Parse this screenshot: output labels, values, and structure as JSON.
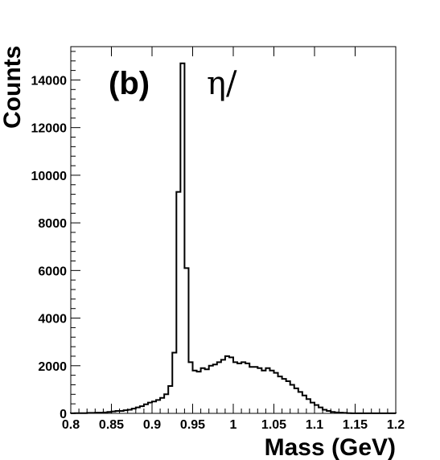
{
  "chart_data": {
    "type": "histogram",
    "xlabel": "Mass (GeV)",
    "ylabel": "Counts",
    "xlim": [
      0.8,
      1.2
    ],
    "ylim": [
      0,
      15400
    ],
    "x_ticks": [
      "0.8",
      "0.85",
      "0.9",
      "0.95",
      "1",
      "1.05",
      "1.1",
      "1.15",
      "1.2"
    ],
    "y_ticks": [
      "0",
      "2000",
      "4000",
      "6000",
      "8000",
      "10000",
      "12000",
      "14000"
    ],
    "panel_label": "(b)",
    "annotation": "η/",
    "bin_width": 0.005,
    "grid": false,
    "series": [
      {
        "x_start": 0.8,
        "values": [
          5,
          10,
          10,
          10,
          20,
          20,
          30,
          30,
          40,
          60,
          80,
          100,
          100,
          130,
          150,
          200,
          250,
          300,
          380,
          450,
          500,
          560,
          650,
          800,
          1150,
          2550,
          9300,
          14700,
          6100,
          2150,
          1800,
          1750,
          1900,
          1850,
          2000,
          2050,
          2150,
          2250,
          2400,
          2350,
          2150,
          2100,
          2150,
          2100,
          1950,
          1950,
          1900,
          1800,
          1900,
          1800,
          1700,
          1550,
          1450,
          1350,
          1200,
          1050,
          900,
          750,
          600,
          450,
          350,
          250,
          150,
          100,
          60,
          40,
          30,
          20,
          10,
          5,
          5,
          5,
          5,
          5,
          5,
          5,
          5,
          5,
          5,
          5
        ]
      }
    ]
  }
}
